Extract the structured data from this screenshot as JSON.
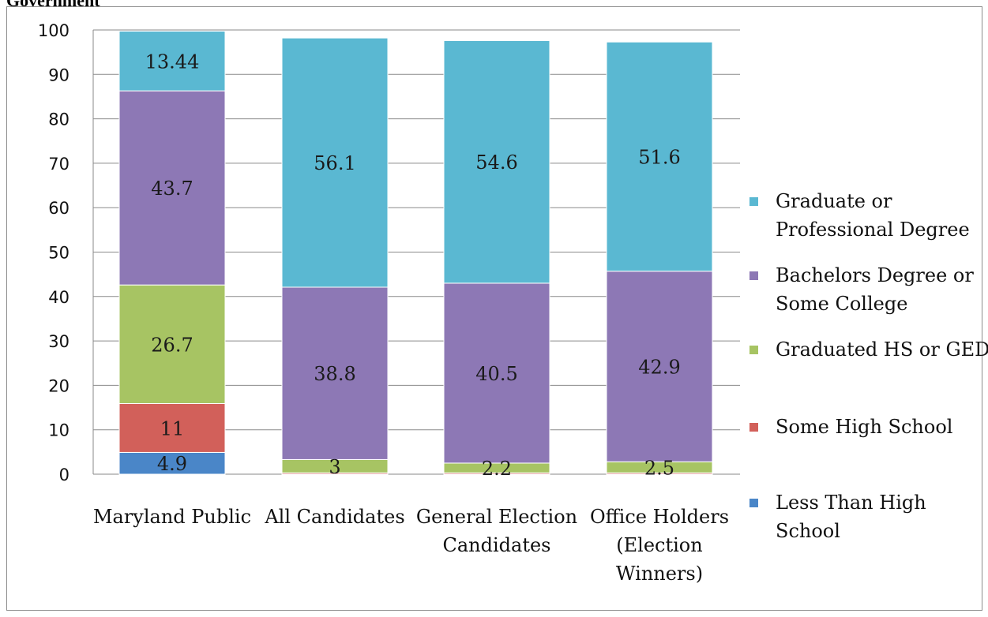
{
  "header": {
    "fragment": "Government"
  },
  "chart_data": {
    "type": "bar",
    "stacked": true,
    "categories": [
      [
        "Maryland Public"
      ],
      [
        "All Candidates"
      ],
      [
        "General Election",
        "Candidates"
      ],
      [
        "Office Holders",
        "(Election",
        "Winners)"
      ]
    ],
    "ylim": [
      0,
      100
    ],
    "yticks": [
      0,
      10,
      20,
      30,
      40,
      50,
      60,
      70,
      80,
      90,
      100
    ],
    "grid": true,
    "legend_position": "right",
    "series": [
      {
        "name": "Less Than High School",
        "legend_lines": [
          "Less Than High",
          "School"
        ],
        "color": "#4a86c8",
        "values": [
          4.9,
          0,
          0,
          0
        ],
        "labels": [
          "4.9",
          "",
          "",
          ""
        ]
      },
      {
        "name": "Some High School",
        "legend_lines": [
          "Some High School"
        ],
        "color": "#d2605a",
        "values": [
          11,
          0.3,
          0.3,
          0.3
        ],
        "labels": [
          "11",
          "",
          "",
          ""
        ]
      },
      {
        "name": "Graduated HS or GED",
        "legend_lines": [
          "Graduated HS or GED"
        ],
        "color": "#a7c463",
        "values": [
          26.7,
          3,
          2.2,
          2.5
        ],
        "labels": [
          "26.7",
          "3",
          "2.2",
          "2.5"
        ]
      },
      {
        "name": "Bachelors Degree or Some College",
        "legend_lines": [
          "Bachelors Degree or",
          "Some College"
        ],
        "color": "#8d78b5",
        "values": [
          43.7,
          38.8,
          40.5,
          42.9
        ],
        "labels": [
          "43.7",
          "38.8",
          "40.5",
          "42.9"
        ]
      },
      {
        "name": "Graduate or Professional Degree",
        "legend_lines": [
          "Graduate or",
          "Professional Degree"
        ],
        "color": "#5ab8d2",
        "values": [
          13.44,
          56.1,
          54.6,
          51.6
        ],
        "labels": [
          "13.44",
          "56.1",
          "54.6",
          "51.6"
        ]
      }
    ]
  }
}
